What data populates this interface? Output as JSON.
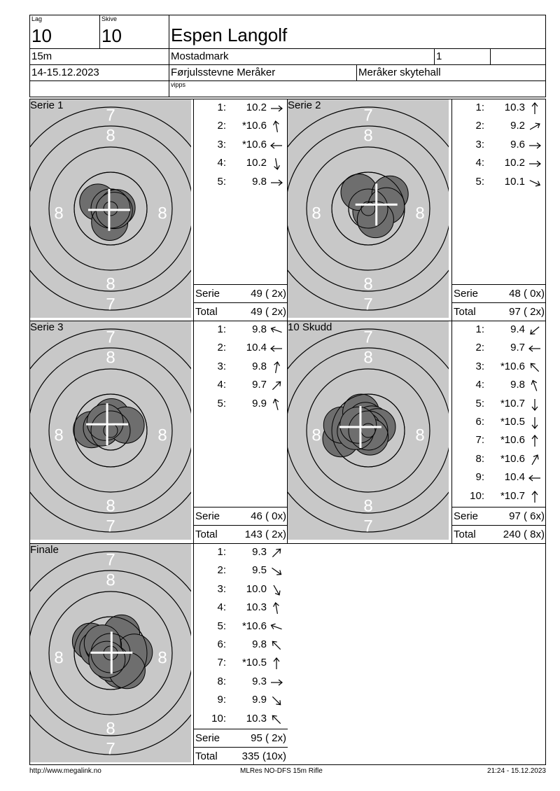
{
  "header": {
    "lag_label": "Lag",
    "lag_value": "10",
    "skive_label": "Skive",
    "skive_value": "10",
    "shooter_name": "Espen Langolf",
    "distance": "15m",
    "club": "Mostadmark",
    "class_code": "1",
    "class_extra": "",
    "date": "14-15.12.2023",
    "event": "Førjulsstevne Meråker",
    "venue": "Meråker skytehall",
    "sponsor": "vipps"
  },
  "series": [
    {
      "title": "Serie 1",
      "shots": [
        {
          "n": "1:",
          "v": "10.2",
          "dir": 90
        },
        {
          "n": "2:",
          "v": "*10.6",
          "dir": 350
        },
        {
          "n": "3:",
          "v": "*10.6",
          "dir": 270
        },
        {
          "n": "4:",
          "v": "10.2",
          "dir": 170
        },
        {
          "n": "5:",
          "v": "9.8",
          "dir": 90
        }
      ],
      "serie_label": "Serie",
      "serie_value": "49 ( 2x)",
      "total_label": "Total",
      "total_value": "49 ( 2x)",
      "hits": [
        [
          -0.2,
          0.1
        ],
        [
          -0.7,
          0.35
        ],
        [
          0.35,
          0.05
        ],
        [
          -0.05,
          -0.75
        ],
        [
          0.2,
          -0.1
        ]
      ]
    },
    {
      "title": "Serie 2",
      "shots": [
        {
          "n": "1:",
          "v": "10.3",
          "dir": 0
        },
        {
          "n": "2:",
          "v": "9.2",
          "dir": 60
        },
        {
          "n": "3:",
          "v": "9.6",
          "dir": 90
        },
        {
          "n": "4:",
          "v": "10.2",
          "dir": 90
        },
        {
          "n": "5:",
          "v": "10.1",
          "dir": 115
        }
      ],
      "serie_label": "Serie",
      "serie_value": "48 ( 0x)",
      "total_label": "Total",
      "total_value": "97 ( 2x)",
      "hits": [
        [
          0.15,
          -0.15
        ],
        [
          -0.5,
          0.9
        ],
        [
          1.2,
          0.8
        ],
        [
          1.0,
          0.15
        ],
        [
          0.4,
          -0.6
        ]
      ]
    },
    {
      "title": "Serie 3",
      "shots": [
        {
          "n": "1:",
          "v": "9.8",
          "dir": 290
        },
        {
          "n": "2:",
          "v": "10.4",
          "dir": 270
        },
        {
          "n": "3:",
          "v": "9.8",
          "dir": 10
        },
        {
          "n": "4:",
          "v": "9.7",
          "dir": 45
        },
        {
          "n": "5:",
          "v": "9.9",
          "dir": 345
        }
      ],
      "serie_label": "Serie",
      "serie_value": "46 ( 0x)",
      "total_label": "Total",
      "total_value": "143 ( 2x)",
      "hits": [
        [
          -1.05,
          0.05
        ],
        [
          -0.5,
          0.15
        ],
        [
          0.05,
          0.75
        ],
        [
          0.85,
          0.3
        ],
        [
          -0.3,
          0.45
        ]
      ]
    },
    {
      "title": "10 Skudd",
      "shots": [
        {
          "n": "1:",
          "v": "9.4",
          "dir": 230
        },
        {
          "n": "2:",
          "v": "9.7",
          "dir": 270
        },
        {
          "n": "3:",
          "v": "*10.6",
          "dir": 315
        },
        {
          "n": "4:",
          "v": "9.8",
          "dir": 340
        },
        {
          "n": "5:",
          "v": "*10.7",
          "dir": 180
        },
        {
          "n": "6:",
          "v": "*10.5",
          "dir": 180
        },
        {
          "n": "7:",
          "v": "*10.6",
          "dir": 0
        },
        {
          "n": "8:",
          "v": "*10.6",
          "dir": 30
        },
        {
          "n": "9:",
          "v": "10.4",
          "dir": 270
        },
        {
          "n": "10:",
          "v": "*10.7",
          "dir": 0
        }
      ],
      "serie_label": "Serie",
      "serie_value": "97 ( 6x)",
      "total_label": "Total",
      "total_value": "240 ( 8x)",
      "hits": [
        [
          -1.5,
          -0.45
        ],
        [
          -1.45,
          0.3
        ],
        [
          -0.4,
          1.0
        ],
        [
          -0.15,
          0.55
        ],
        [
          0.2,
          0.35
        ],
        [
          0.5,
          0.2
        ],
        [
          -0.3,
          0.05
        ],
        [
          0.1,
          -0.35
        ],
        [
          -0.7,
          -0.05
        ],
        [
          -0.55,
          0.3
        ]
      ]
    },
    {
      "title": "Finale",
      "shots": [
        {
          "n": "1:",
          "v": "9.3",
          "dir": 45
        },
        {
          "n": "2:",
          "v": "9.5",
          "dir": 125
        },
        {
          "n": "3:",
          "v": "10.0",
          "dir": 150
        },
        {
          "n": "4:",
          "v": "10.3",
          "dir": 350
        },
        {
          "n": "5:",
          "v": "*10.6",
          "dir": 290
        },
        {
          "n": "6:",
          "v": "9.8",
          "dir": 315
        },
        {
          "n": "7:",
          "v": "*10.5",
          "dir": 0
        },
        {
          "n": "8:",
          "v": "9.3",
          "dir": 90
        },
        {
          "n": "9:",
          "v": "9.9",
          "dir": 135
        },
        {
          "n": "10:",
          "v": "10.3",
          "dir": 315
        }
      ],
      "serie_label": "Serie",
      "serie_value": "95 ( 2x)",
      "total_label": "Total",
      "total_value": "335 (10x)",
      "hits": [
        [
          -1.1,
          0.65
        ],
        [
          0.6,
          1.1
        ],
        [
          0.5,
          -0.9
        ],
        [
          1.3,
          0.05
        ],
        [
          -0.7,
          0.25
        ],
        [
          -0.4,
          0.4
        ],
        [
          0.05,
          -0.55
        ],
        [
          -0.45,
          0.55
        ],
        [
          0.9,
          -0.95
        ],
        [
          -0.2,
          -0.35
        ]
      ]
    }
  ],
  "target_labels": {
    "ring7": "7",
    "ring8": "8"
  },
  "footer": {
    "url": "http://www.megalink.no",
    "program": "MLRes NO-DFS 15m Rifle",
    "timestamp": "21:24 - 15.12.2023"
  },
  "colors": {
    "target_bg": "#c8c8c8",
    "hit_fill": "#6e6e6e",
    "ring": "#000000",
    "number": "#ffffff"
  }
}
